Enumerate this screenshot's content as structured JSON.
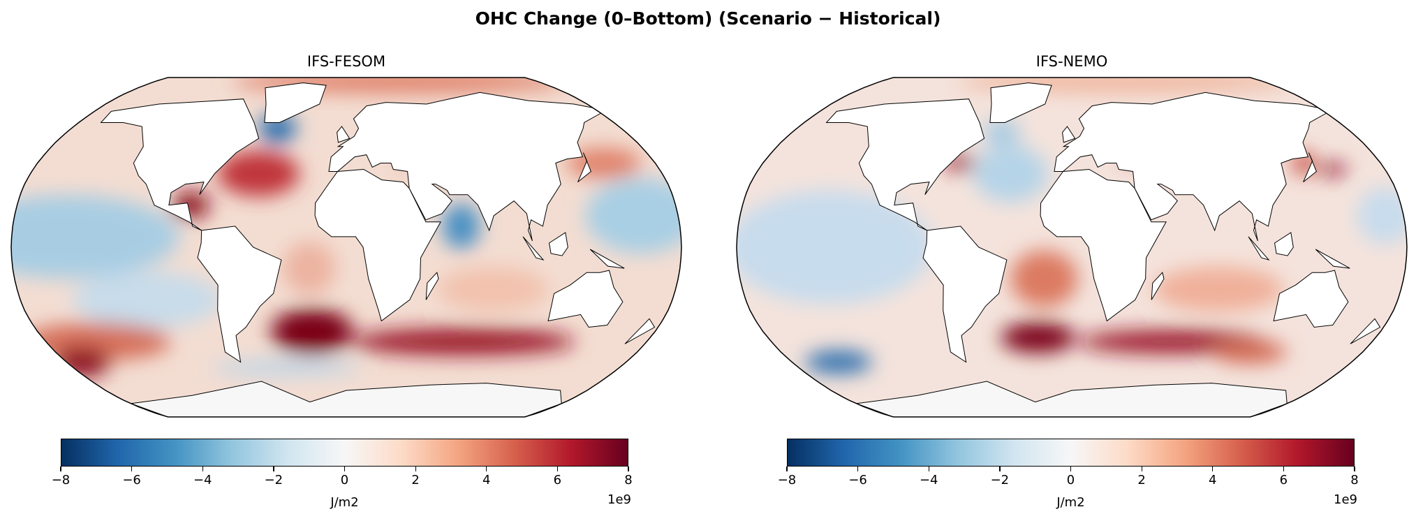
{
  "title": "OHC Change (0–Bottom) (Scenario − Historical)",
  "chart_data": [
    {
      "type": "heatmap",
      "title": "IFS-FESOM",
      "projection": "Robinson",
      "colormap": "RdBu_r",
      "colorbar": {
        "label": "J/m2",
        "multiplier": "1e9",
        "ticks": [
          "−8",
          "−6",
          "−4",
          "−2",
          "0",
          "2",
          "4",
          "6",
          "8"
        ],
        "range": [
          -8000000000.0,
          8000000000.0
        ],
        "orientation": "horizontal"
      }
    },
    {
      "type": "heatmap",
      "title": "IFS-NEMO",
      "projection": "Robinson",
      "colormap": "RdBu_r",
      "colorbar": {
        "label": "J/m2",
        "multiplier": "1e9",
        "ticks": [
          "−8",
          "−6",
          "−4",
          "−2",
          "0",
          "2",
          "4",
          "6",
          "8"
        ],
        "range": [
          -8000000000.0,
          8000000000.0
        ],
        "orientation": "horizontal"
      }
    }
  ]
}
